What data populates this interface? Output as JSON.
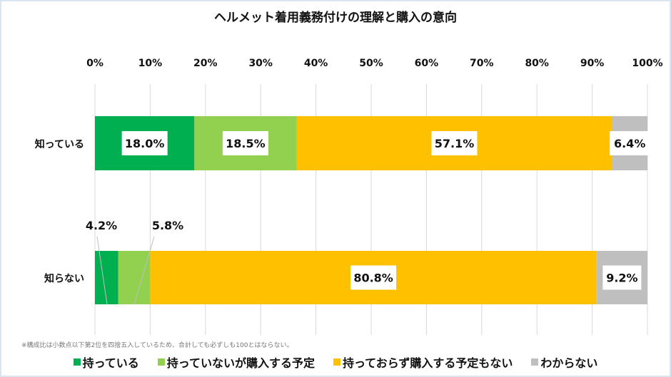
{
  "chart_data": {
    "type": "bar",
    "stacked": true,
    "orientation": "horizontal",
    "title": "ヘルメット着用義務付けの理解と購入の意向",
    "categories": [
      "知っている",
      "知らない"
    ],
    "series": [
      {
        "name": "持っている",
        "color": "#00b050",
        "values": [
          18.0,
          4.2
        ],
        "labels": [
          "18.0%",
          "4.2%"
        ]
      },
      {
        "name": "持っていないが購入する予定",
        "color": "#92d050",
        "values": [
          18.5,
          5.8
        ],
        "labels": [
          "18.5%",
          "5.8%"
        ]
      },
      {
        "name": "持っておらず購入する予定もない",
        "color": "#ffc000",
        "values": [
          57.1,
          80.8
        ],
        "labels": [
          "57.1%",
          "80.8%"
        ]
      },
      {
        "name": "わからない",
        "color": "#bfbfbf",
        "values": [
          6.4,
          9.2
        ],
        "labels": [
          "6.4%",
          "9.2%"
        ]
      }
    ],
    "xlim": [
      0,
      100
    ],
    "xticks": [
      "0%",
      "10%",
      "20%",
      "30%",
      "40%",
      "50%",
      "60%",
      "70%",
      "80%",
      "90%",
      "100%"
    ],
    "grid": true,
    "legend": "bottom",
    "note": "※構成比は小数点以下第2位を四捨五入しているため、合計しても必ずしも100とはならない。"
  }
}
